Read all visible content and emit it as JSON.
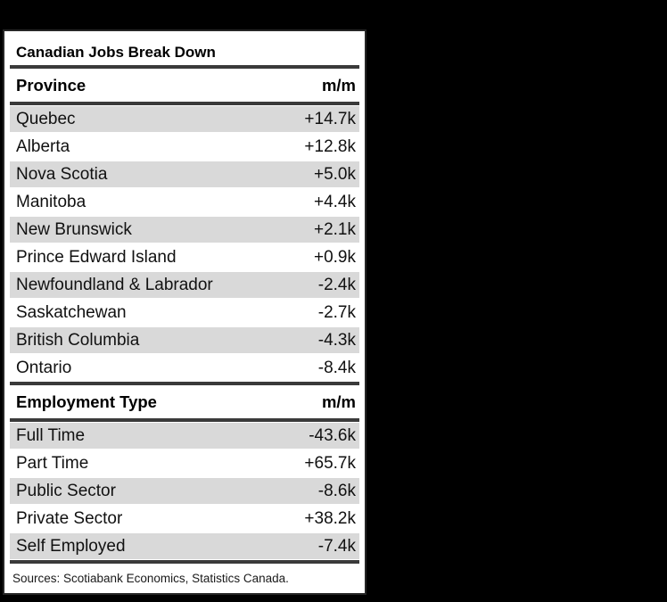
{
  "chart_data": {
    "type": "table",
    "title": "Canadian Jobs Break Down",
    "sections": [
      {
        "header": {
          "label": "Province",
          "value": "m/m"
        },
        "rows": [
          {
            "label": "Quebec",
            "value": "+14.7k"
          },
          {
            "label": "Alberta",
            "value": "+12.8k"
          },
          {
            "label": "Nova Scotia",
            "value": "+5.0k"
          },
          {
            "label": "Manitoba",
            "value": "+4.4k"
          },
          {
            "label": "New Brunswick",
            "value": "+2.1k"
          },
          {
            "label": "Prince Edward Island",
            "value": "+0.9k"
          },
          {
            "label": "Newfoundland & Labrador",
            "value": "-2.4k"
          },
          {
            "label": "Saskatchewan",
            "value": "-2.7k"
          },
          {
            "label": "British Columbia",
            "value": "-4.3k"
          },
          {
            "label": "Ontario",
            "value": "-8.4k"
          }
        ]
      },
      {
        "header": {
          "label": "Employment Type",
          "value": "m/m"
        },
        "rows": [
          {
            "label": "Full Time",
            "value": "-43.6k"
          },
          {
            "label": "Part Time",
            "value": "+65.7k"
          },
          {
            "label": "Public Sector",
            "value": "-8.6k"
          },
          {
            "label": "Private Sector",
            "value": "+38.2k"
          },
          {
            "label": "Self Employed",
            "value": "-7.4k"
          }
        ]
      }
    ],
    "source_note": "Sources: Scotiabank Economics, Statistics Canada.",
    "layout": {
      "stripe_pattern": "odd rows shaded, starting with first data row",
      "value_alignment": "right"
    }
  },
  "colors": {
    "page_background": "#000000",
    "panel_background": "#ffffff",
    "stripe_row": "#d9d9d9",
    "rule": "#3a3a3a",
    "text": "#111111"
  }
}
